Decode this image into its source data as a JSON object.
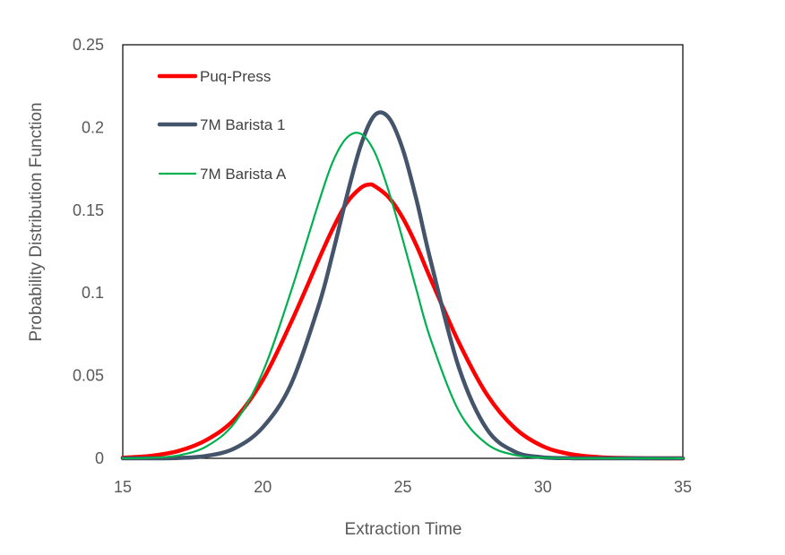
{
  "chart_data": {
    "type": "line",
    "xlabel": "Extraction Time",
    "ylabel": "Probability Distribution Function",
    "xlim": [
      15,
      35
    ],
    "ylim": [
      0,
      0.25
    ],
    "x_ticks": [
      15,
      20,
      25,
      30,
      35
    ],
    "y_ticks": [
      0,
      0.05,
      0.1,
      0.15,
      0.2,
      0.25
    ],
    "x_tick_labels": [
      "15",
      "20",
      "25",
      "30",
      "35"
    ],
    "y_tick_labels": [
      "0",
      "0.05",
      "0.1",
      "0.15",
      "0.2",
      "0.25"
    ],
    "grid": false,
    "legend_position": "top-left",
    "series": [
      {
        "name": "Puq-Press",
        "color": "#ff0000",
        "x": [
          15,
          16,
          17,
          18,
          19,
          20,
          21,
          22,
          22.5,
          23,
          23.5,
          23.8,
          24,
          24.5,
          25,
          25.5,
          26,
          27,
          28,
          29,
          30,
          31,
          32,
          33,
          34,
          35
        ],
        "y": [
          0.0004,
          0.0015,
          0.0045,
          0.0112,
          0.0238,
          0.0474,
          0.0818,
          0.1203,
          0.1388,
          0.1545,
          0.1635,
          0.1655,
          0.1645,
          0.1577,
          0.1453,
          0.1282,
          0.1082,
          0.0701,
          0.0387,
          0.0183,
          0.0073,
          0.0025,
          0.0007,
          0.0002,
          0.0,
          0.0
        ]
      },
      {
        "name": "7M Barista 1",
        "color": "#44546a",
        "x": [
          15,
          16,
          17,
          18,
          19,
          20,
          21,
          22,
          22.5,
          23,
          23.5,
          24,
          24.5,
          25,
          25.5,
          26,
          27,
          28,
          29,
          30,
          31,
          32,
          33,
          34,
          35
        ],
        "y": [
          0.0,
          0.0,
          0.0002,
          0.0015,
          0.0061,
          0.0187,
          0.0445,
          0.0925,
          0.1241,
          0.1584,
          0.1892,
          0.2075,
          0.2059,
          0.1868,
          0.1555,
          0.119,
          0.055,
          0.0177,
          0.004,
          0.0006,
          0.0001,
          0.0,
          0.0,
          0.0,
          0.0
        ]
      },
      {
        "name": "7M Barista A",
        "color": "#00b050",
        "x": [
          15,
          16,
          17,
          18,
          19,
          20,
          21,
          22,
          22.5,
          23,
          23.5,
          24,
          24.5,
          25,
          25.5,
          26,
          27,
          28,
          29,
          30,
          31,
          32,
          33,
          34,
          35
        ],
        "y": [
          0.0,
          0.0003,
          0.0018,
          0.0073,
          0.0216,
          0.0522,
          0.1005,
          0.1548,
          0.1793,
          0.1938,
          0.1962,
          0.1849,
          0.1613,
          0.1321,
          0.1011,
          0.0717,
          0.0286,
          0.0087,
          0.002,
          0.0004,
          0.0,
          0.0,
          0.0,
          0.0,
          0.0
        ]
      }
    ]
  }
}
